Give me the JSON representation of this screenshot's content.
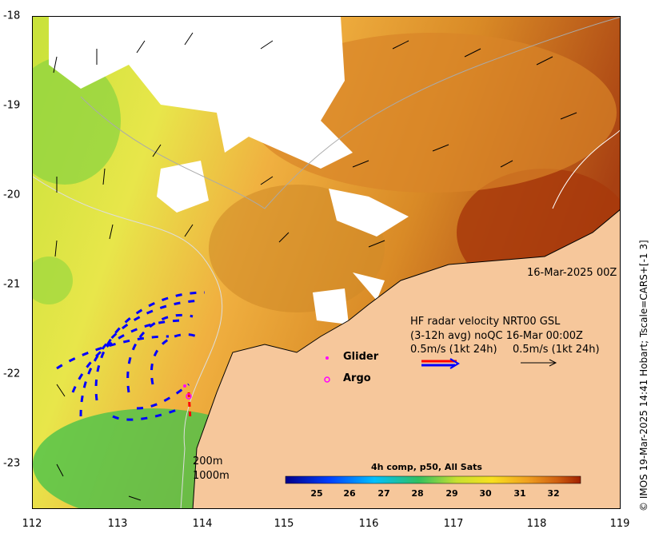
{
  "map": {
    "date_label": "16-Mar-2025 00Z",
    "side_note": "© IMOS 19-Mar-2025 14:41 Hobart; Tscale=CARS+[-1 3]",
    "x_ticks": [
      "112",
      "113",
      "114",
      "115",
      "116",
      "117",
      "118",
      "119"
    ],
    "y_ticks": [
      "-18",
      "-19",
      "-20",
      "-21",
      "-22",
      "-23"
    ],
    "depth_labels": [
      "200m",
      "1000m"
    ]
  },
  "legend": {
    "line1": "HF radar velocity  NRT00 GSL",
    "line2": "(3-12h avg) noQC 16-Mar 00:00Z",
    "line3a": "0.5m/s (1kt 24h)",
    "line3b": "0.5m/s (1kt 24h)",
    "glider": "Glider",
    "argo": "Argo"
  },
  "colorbar": {
    "title": "4h comp, p50, All Sats",
    "ticks": [
      "25",
      "26",
      "27",
      "28",
      "29",
      "30",
      "31",
      "32"
    ]
  },
  "colors": {
    "land": "#f6c79b",
    "radar_red": "#ff0000",
    "radar_blue": "#0000ff",
    "glider": "#ff00ff"
  }
}
